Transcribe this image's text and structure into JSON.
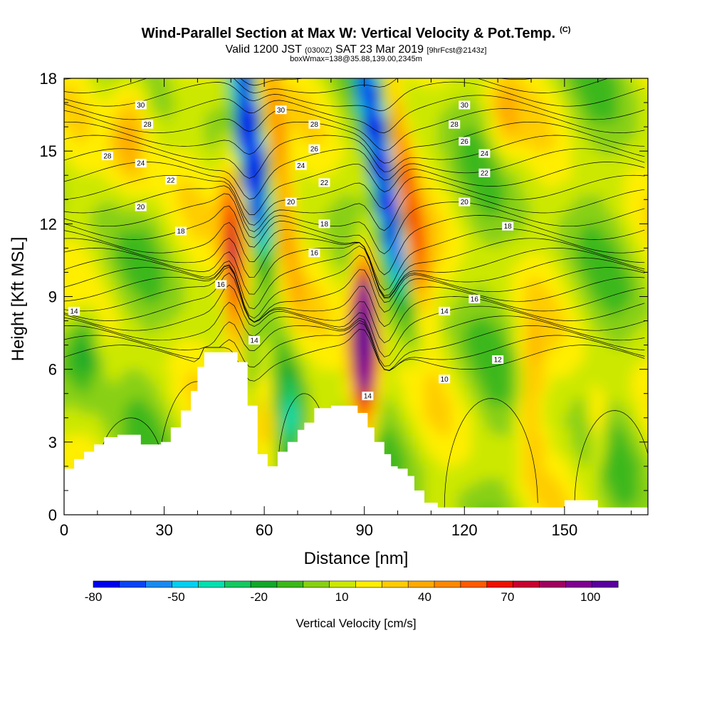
{
  "header": {
    "title": "Wind-Parallel Section at Max W: Vertical Velocity & Pot.Temp.",
    "copyright": "(C)",
    "valid_prefix": "Valid 1200 JST",
    "valid_utc": "(0300Z)",
    "valid_date": "SAT 23 Mar 2019",
    "forecast": "[9hrFcst@2143z]",
    "box_info": "boxWmax=138@35.88,139.00,2345m"
  },
  "colors": {
    "palette": [
      "#0000ee",
      "#0a45f5",
      "#1a8af0",
      "#00d0f0",
      "#00e0b0",
      "#14c860",
      "#12a82a",
      "#3cb81a",
      "#88d012",
      "#cce800",
      "#ffee00",
      "#ffcc00",
      "#ffaa00",
      "#ff8800",
      "#ff5a00",
      "#ee1100",
      "#c80030",
      "#a00060",
      "#800090",
      "#5a00a0"
    ],
    "terrain": "#ffffff"
  },
  "chart_data": {
    "type": "heatmap",
    "xlabel": "Distance [nm]",
    "ylabel": "Height [Kft MSL]",
    "xlim": [
      0,
      175
    ],
    "ylim": [
      0,
      18
    ],
    "x_ticks": [
      "0",
      "30",
      "60",
      "90",
      "120",
      "150"
    ],
    "y_ticks": [
      "0",
      "3",
      "6",
      "9",
      "12",
      "15",
      "18"
    ],
    "colorbar": {
      "title": "Vertical Velocity [cm/s]",
      "tick_labels": [
        "-80",
        "-50",
        "-20",
        "10",
        "40",
        "70",
        "100"
      ],
      "range": [
        -80,
        110
      ]
    },
    "terrain_profile": {
      "x": [
        0,
        3,
        6,
        9,
        12,
        16,
        23,
        29,
        32,
        35,
        38,
        40,
        42,
        45,
        49,
        52,
        55,
        58,
        61,
        64,
        67,
        70,
        72,
        75,
        80,
        85,
        88,
        91,
        93,
        96,
        98,
        100,
        103,
        105,
        108,
        112,
        120,
        130,
        145,
        150,
        155,
        160,
        175
      ],
      "height": [
        1.9,
        2.3,
        2.6,
        2.9,
        3.2,
        3.3,
        2.9,
        3.0,
        3.6,
        4.3,
        5.1,
        6.1,
        6.7,
        6.7,
        6.7,
        6.3,
        4.5,
        2.5,
        2.0,
        2.6,
        3.0,
        3.5,
        3.8,
        4.4,
        4.5,
        4.5,
        4.2,
        3.6,
        3.0,
        2.5,
        2.0,
        1.9,
        1.6,
        1.0,
        0.5,
        0.3,
        0.3,
        0.3,
        0.3,
        0.6,
        0.6,
        0.3,
        0.3
      ]
    },
    "vertical_velocity_features": [
      {
        "x": 90,
        "y": 8,
        "w_cm_s": 110
      },
      {
        "x": 56,
        "y": 16,
        "w_cm_s": -80
      },
      {
        "x": 95,
        "y": 14,
        "w_cm_s": -80
      },
      {
        "x": 51,
        "y": 9,
        "w_cm_s": 60
      },
      {
        "x": 67,
        "y": 4,
        "w_cm_s": -30
      },
      {
        "x": 5,
        "y": 7,
        "w_cm_s": -20
      }
    ],
    "contour_labels": [
      {
        "value": "30",
        "x": 23,
        "y": 16.9
      },
      {
        "value": "28",
        "x": 25,
        "y": 16.1
      },
      {
        "value": "28",
        "x": 13,
        "y": 14.8
      },
      {
        "value": "24",
        "x": 23,
        "y": 14.5
      },
      {
        "value": "22",
        "x": 32,
        "y": 13.8
      },
      {
        "value": "20",
        "x": 23,
        "y": 12.7
      },
      {
        "value": "18",
        "x": 35,
        "y": 11.7
      },
      {
        "value": "16",
        "x": 47,
        "y": 9.5
      },
      {
        "value": "14",
        "x": 3,
        "y": 8.4
      },
      {
        "value": "14",
        "x": 57,
        "y": 7.2
      },
      {
        "value": "30",
        "x": 65,
        "y": 16.7
      },
      {
        "value": "28",
        "x": 75,
        "y": 16.1
      },
      {
        "value": "26",
        "x": 75,
        "y": 15.1
      },
      {
        "value": "24",
        "x": 71,
        "y": 14.4
      },
      {
        "value": "22",
        "x": 78,
        "y": 13.7
      },
      {
        "value": "20",
        "x": 68,
        "y": 12.9
      },
      {
        "value": "18",
        "x": 78,
        "y": 12.0
      },
      {
        "value": "16",
        "x": 75,
        "y": 10.8
      },
      {
        "value": "14",
        "x": 91,
        "y": 4.9
      },
      {
        "value": "30",
        "x": 120,
        "y": 16.9
      },
      {
        "value": "28",
        "x": 117,
        "y": 16.1
      },
      {
        "value": "26",
        "x": 120,
        "y": 15.4
      },
      {
        "value": "24",
        "x": 126,
        "y": 14.9
      },
      {
        "value": "22",
        "x": 126,
        "y": 14.1
      },
      {
        "value": "20",
        "x": 120,
        "y": 12.9
      },
      {
        "value": "18",
        "x": 133,
        "y": 11.9
      },
      {
        "value": "16",
        "x": 123,
        "y": 8.9
      },
      {
        "value": "14",
        "x": 114,
        "y": 8.4
      },
      {
        "value": "12",
        "x": 130,
        "y": 6.4
      },
      {
        "value": "10",
        "x": 114,
        "y": 5.6
      }
    ]
  }
}
